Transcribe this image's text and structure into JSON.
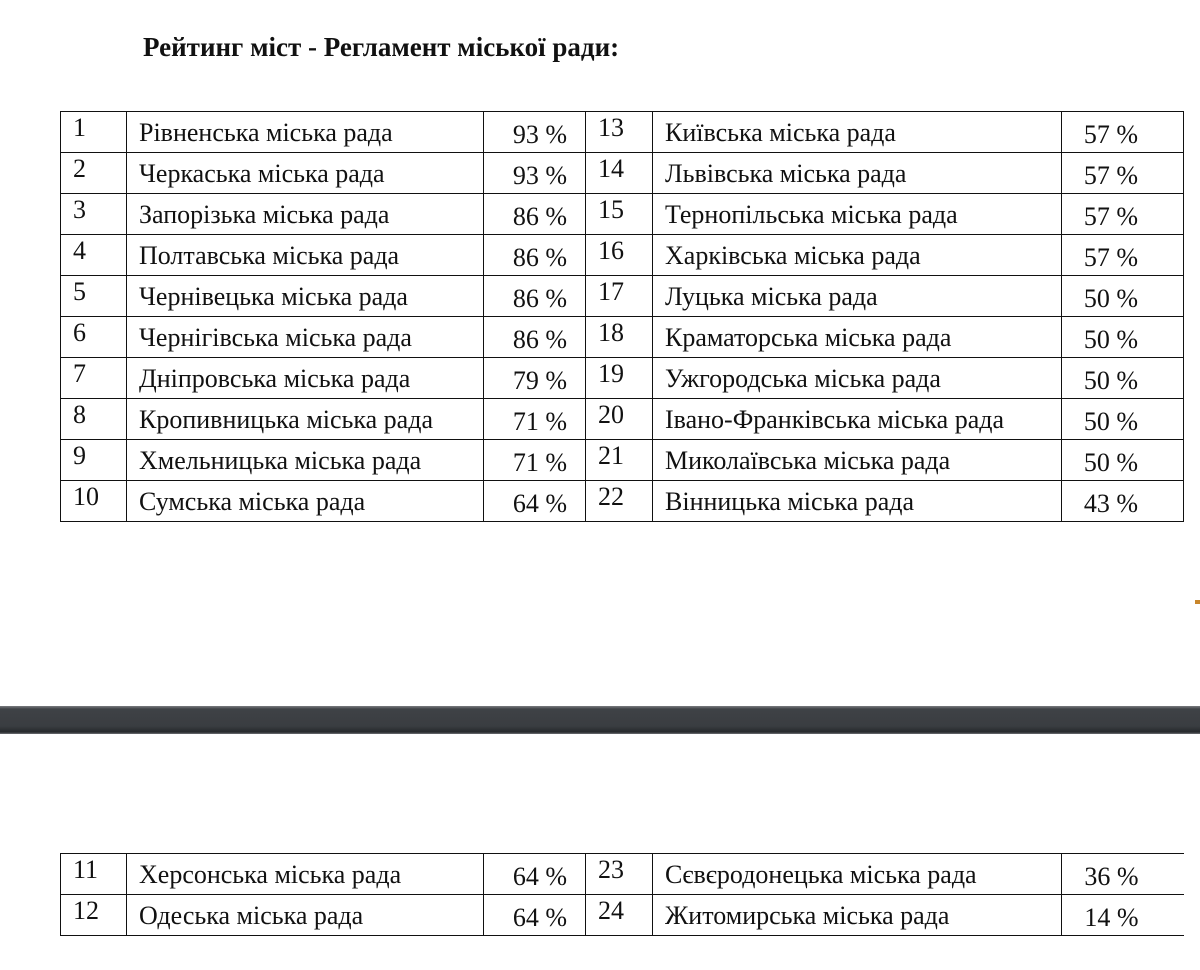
{
  "title": "Рейтинг міст - Регламент міської ради:",
  "rows_top": [
    {
      "left": {
        "rank": "1",
        "city": "Рівненська міська рада",
        "percent": "93 %"
      },
      "right": {
        "rank": "13",
        "city": "Київська міська рада",
        "percent": "57 %"
      }
    },
    {
      "left": {
        "rank": "2",
        "city": "Черкаська міська рада",
        "percent": "93 %"
      },
      "right": {
        "rank": "14",
        "city": "Львівська міська рада",
        "percent": "57 %"
      }
    },
    {
      "left": {
        "rank": "3",
        "city": "Запорізька міська рада",
        "percent": "86 %"
      },
      "right": {
        "rank": "15",
        "city": "Тернопільська міська рада",
        "percent": "57 %"
      }
    },
    {
      "left": {
        "rank": "4",
        "city": "Полтавська міська рада",
        "percent": "86 %"
      },
      "right": {
        "rank": "16",
        "city": "Харківська міська рада",
        "percent": "57 %"
      }
    },
    {
      "left": {
        "rank": "5",
        "city": "Чернівецька міська рада",
        "percent": "86 %"
      },
      "right": {
        "rank": "17",
        "city": "Луцька міська рада",
        "percent": "50 %"
      }
    },
    {
      "left": {
        "rank": "6",
        "city": "Чернігівська міська рада",
        "percent": "86 %"
      },
      "right": {
        "rank": "18",
        "city": "Краматорська міська рада",
        "percent": "50 %"
      }
    },
    {
      "left": {
        "rank": "7",
        "city": "Дніпровська міська рада",
        "percent": "79 %"
      },
      "right": {
        "rank": "19",
        "city": "Ужгородська міська рада",
        "percent": "50 %"
      }
    },
    {
      "left": {
        "rank": "8",
        "city": "Кропивницька міська рада",
        "percent": "71 %"
      },
      "right": {
        "rank": "20",
        "city": "Івано-Франківська міська рада",
        "percent": "50 %"
      }
    },
    {
      "left": {
        "rank": "9",
        "city": "Хмельницька міська рада",
        "percent": "71 %"
      },
      "right": {
        "rank": "21",
        "city": "Миколаївська міська рада",
        "percent": "50 %"
      }
    },
    {
      "left": {
        "rank": "10",
        "city": "Сумська міська рада",
        "percent": "64 %"
      },
      "right": {
        "rank": "22",
        "city": "Вінницька міська рада",
        "percent": "43 %"
      }
    }
  ],
  "rows_bottom": [
    {
      "left": {
        "rank": "11",
        "city": "Херсонська міська рада",
        "percent": "64 %"
      },
      "right": {
        "rank": "23",
        "city": "Сєвєродонецька міська рада",
        "percent": "36 %"
      }
    },
    {
      "left": {
        "rank": "12",
        "city": "Одеська міська рада",
        "percent": "64 %"
      },
      "right": {
        "rank": "24",
        "city": "Житомирська міська рада",
        "percent": "14 %"
      }
    }
  ]
}
